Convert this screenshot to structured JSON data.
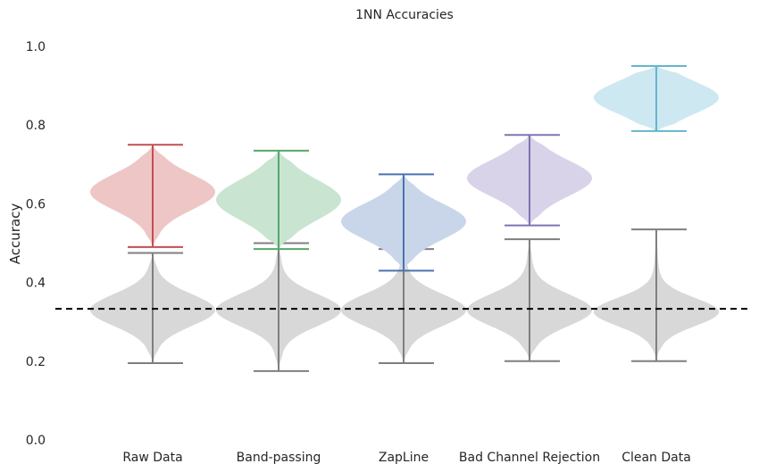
{
  "chart_data": {
    "type": "violin",
    "title": "1NN Accuracies",
    "ylabel": "Accuracy",
    "xlabel": "",
    "ylim": [
      0.0,
      1.0
    ],
    "yticks": [
      "0.0",
      "0.2",
      "0.4",
      "0.6",
      "0.8",
      "1.0"
    ],
    "grid": false,
    "reference_line": {
      "y": 0.333,
      "style": "dashed",
      "color": "#000000"
    },
    "categories": [
      "Raw Data",
      "Band-passing",
      "ZapLine",
      "Bad Channel Rejection",
      "Clean Data"
    ],
    "series": [
      {
        "role": "model",
        "fill_colors": [
          "#eec6c6",
          "#c9e5d2",
          "#c9d6ea",
          "#d9d3ea",
          "#cde8f1"
        ],
        "line_colors": [
          "#c44e52",
          "#55a868",
          "#4c72b0",
          "#8172b2",
          "#64b5cd"
        ],
        "min": [
          0.49,
          0.485,
          0.43,
          0.545,
          0.785
        ],
        "max": [
          0.75,
          0.735,
          0.675,
          0.775,
          0.95
        ],
        "center": [
          0.63,
          0.61,
          0.555,
          0.665,
          0.87
        ],
        "spread": [
          0.045,
          0.05,
          0.045,
          0.045,
          0.04
        ]
      },
      {
        "role": "chance",
        "fill_color": "#d8d8d8",
        "line_color": "#7f7f7f",
        "min": [
          0.195,
          0.175,
          0.195,
          0.2,
          0.2
        ],
        "max": [
          0.475,
          0.5,
          0.485,
          0.51,
          0.535
        ],
        "center": [
          0.33,
          0.33,
          0.33,
          0.33,
          0.325
        ],
        "spread": [
          0.04,
          0.04,
          0.04,
          0.04,
          0.035
        ]
      }
    ]
  }
}
